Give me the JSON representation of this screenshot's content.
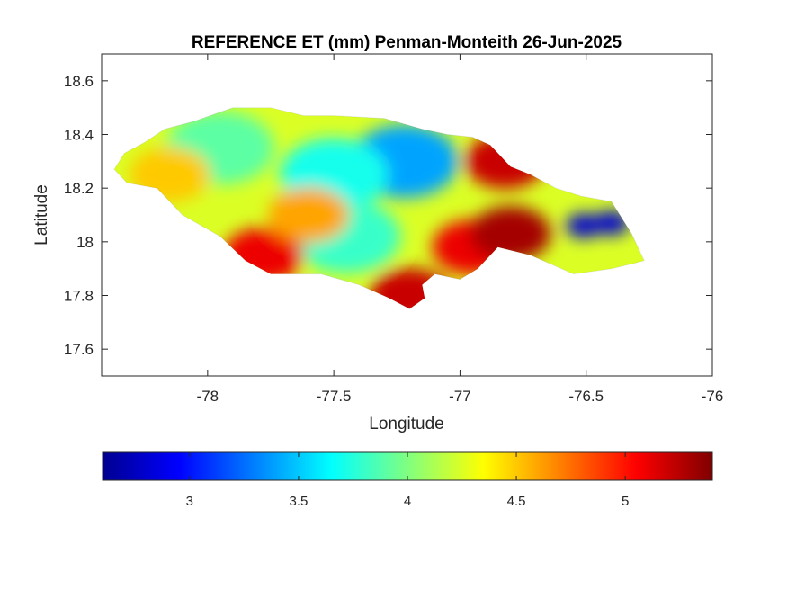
{
  "chart_data": {
    "type": "heatmap",
    "title": "REFERENCE ET (mm) Penman-Monteith 26-Jun-2025",
    "xlabel": "Longitude",
    "ylabel": "Latitude",
    "xlim": [
      -78.42,
      -76.0
    ],
    "ylim": [
      17.5,
      18.7
    ],
    "xticks": [
      -78,
      -77.5,
      -77,
      -76.5,
      -76
    ],
    "xtick_labels": [
      "-78",
      "-77.5",
      "-77",
      "-76.5",
      "-76"
    ],
    "yticks": [
      17.6,
      17.8,
      18.0,
      18.2,
      18.4,
      18.6
    ],
    "ytick_labels": [
      "17.6",
      "17.8",
      "18",
      "18.2",
      "18.4",
      "18.6"
    ],
    "grid": false,
    "colormap": "jet",
    "colorbar": {
      "orientation": "horizontal",
      "position": "below",
      "range": [
        2.6,
        5.4
      ],
      "ticks": [
        3,
        3.5,
        4,
        4.5,
        5
      ],
      "tick_labels": [
        "3",
        "3.5",
        "4",
        "4.5",
        "5"
      ],
      "colors": [
        "#00008f",
        "#0000ff",
        "#0080ff",
        "#00ffff",
        "#80ff80",
        "#ffff00",
        "#ff8000",
        "#ff0000",
        "#800000"
      ]
    },
    "region": "Jamaica",
    "outline_lonlat": [
      [
        -78.37,
        18.27
      ],
      [
        -78.33,
        18.33
      ],
      [
        -78.25,
        18.37
      ],
      [
        -78.17,
        18.42
      ],
      [
        -78.05,
        18.45
      ],
      [
        -77.96,
        18.48
      ],
      [
        -77.9,
        18.5
      ],
      [
        -77.75,
        18.5
      ],
      [
        -77.62,
        18.47
      ],
      [
        -77.5,
        18.47
      ],
      [
        -77.3,
        18.46
      ],
      [
        -77.15,
        18.42
      ],
      [
        -77.05,
        18.4
      ],
      [
        -76.95,
        18.39
      ],
      [
        -76.88,
        18.36
      ],
      [
        -76.8,
        18.28
      ],
      [
        -76.72,
        18.25
      ],
      [
        -76.62,
        18.2
      ],
      [
        -76.52,
        18.17
      ],
      [
        -76.4,
        18.15
      ],
      [
        -76.32,
        18.03
      ],
      [
        -76.27,
        17.93
      ],
      [
        -76.31,
        17.92
      ],
      [
        -76.4,
        17.9
      ],
      [
        -76.55,
        17.88
      ],
      [
        -76.72,
        17.95
      ],
      [
        -76.85,
        17.98
      ],
      [
        -76.93,
        17.9
      ],
      [
        -77.0,
        17.86
      ],
      [
        -77.1,
        17.88
      ],
      [
        -77.15,
        17.84
      ],
      [
        -77.14,
        17.79
      ],
      [
        -77.2,
        17.75
      ],
      [
        -77.28,
        17.79
      ],
      [
        -77.4,
        17.84
      ],
      [
        -77.55,
        17.88
      ],
      [
        -77.75,
        17.88
      ],
      [
        -77.85,
        17.93
      ],
      [
        -77.95,
        18.02
      ],
      [
        -78.1,
        18.1
      ],
      [
        -78.2,
        18.2
      ],
      [
        -78.32,
        18.22
      ]
    ],
    "value_features": [
      {
        "lon": -76.51,
        "lat": 18.06,
        "value": 2.8
      },
      {
        "lon": -76.4,
        "lat": 18.07,
        "value": 2.8
      },
      {
        "lon": -77.22,
        "lat": 18.3,
        "value": 3.4
      },
      {
        "lon": -77.5,
        "lat": 18.25,
        "value": 3.7
      },
      {
        "lon": -77.45,
        "lat": 18.02,
        "value": 3.8
      },
      {
        "lon": -77.95,
        "lat": 18.35,
        "value": 3.9
      },
      {
        "lon": -76.95,
        "lat": 17.98,
        "value": 5.1
      },
      {
        "lon": -76.82,
        "lat": 18.3,
        "value": 5.2
      },
      {
        "lon": -76.8,
        "lat": 18.03,
        "value": 5.3
      },
      {
        "lon": -77.78,
        "lat": 17.95,
        "value": 5.1
      },
      {
        "lon": -77.2,
        "lat": 17.8,
        "value": 5.2
      },
      {
        "lon": -77.6,
        "lat": 18.1,
        "value": 4.6
      },
      {
        "lon": -78.15,
        "lat": 18.25,
        "value": 4.5
      }
    ]
  }
}
